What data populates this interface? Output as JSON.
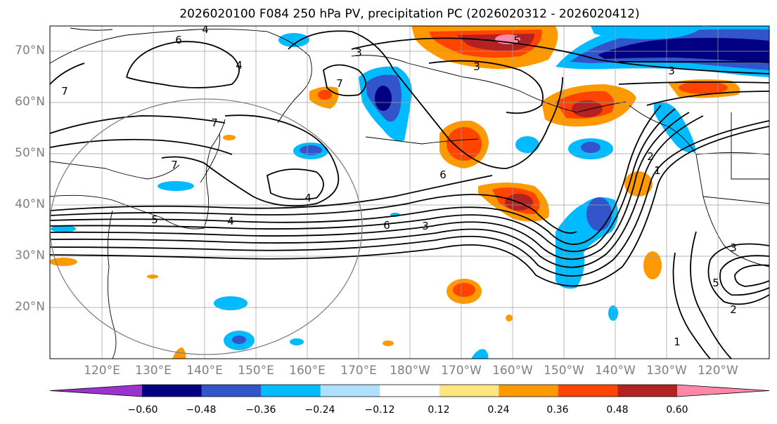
{
  "title": "2026020100 F084 250 hPa PV, precipitation PC (2026020312 - 2026020412)",
  "lat_labels": [
    "70°N",
    "60°N",
    "50°N",
    "40°N",
    "30°N",
    "20°N"
  ],
  "lon_labels": [
    "120°E",
    "130°E",
    "140°E",
    "150°E",
    "160°E",
    "170°E",
    "180°W",
    "170°W",
    "160°W",
    "150°W",
    "140°W",
    "130°W",
    "120°W"
  ],
  "colorbar": {
    "tick_labels": [
      "−0.60",
      "−0.48",
      "−0.36",
      "−0.24",
      "−0.12",
      "0.12",
      "0.24",
      "0.36",
      "0.48",
      "0.60"
    ],
    "colors": [
      "#9933cc",
      "#000080",
      "#3355cc",
      "#00bbff",
      "#b0e0ff",
      "#ffffff",
      "#ffe680",
      "#ff9900",
      "#ff4400",
      "#b22222",
      "#ff88aa"
    ]
  },
  "contour_labels": [
    "6",
    "4",
    "4",
    "3",
    "7",
    "7",
    "7",
    "7",
    "5",
    "4",
    "6",
    "6",
    "3",
    "5",
    "3",
    "3",
    "4",
    "2",
    "1",
    "3",
    "5",
    "2",
    "1"
  ]
}
